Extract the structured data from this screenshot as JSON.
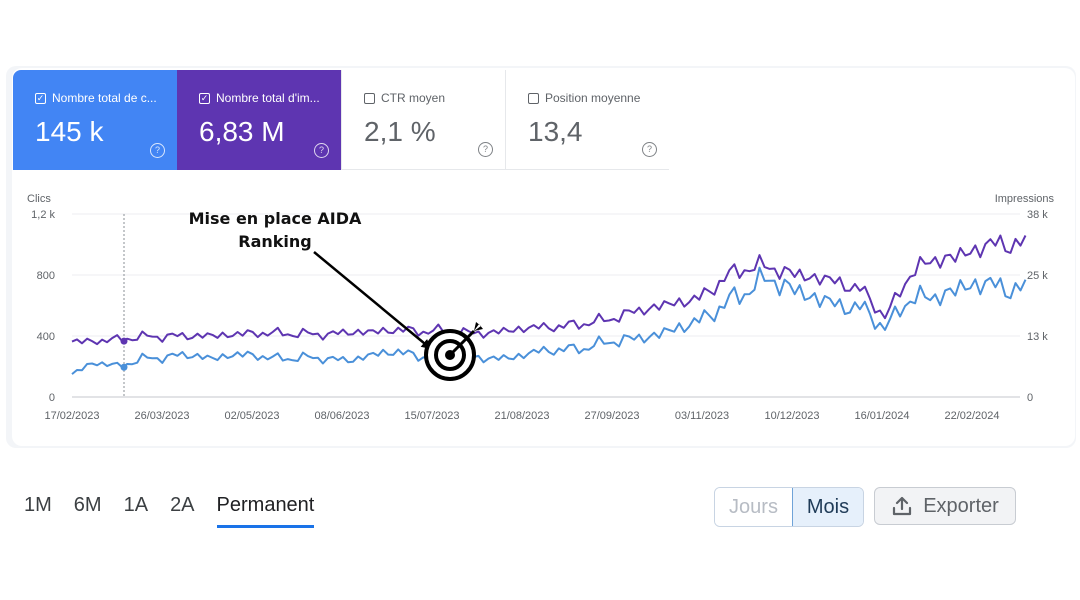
{
  "cards": [
    {
      "label": "Nombre total de c...",
      "value": "145 k",
      "checked": true
    },
    {
      "label": "Nombre total d'im...",
      "value": "6,83 M",
      "checked": true
    },
    {
      "label": "CTR moyen",
      "value": "2,1 %",
      "checked": false
    },
    {
      "label": "Position moyenne",
      "value": "13,4",
      "checked": false
    }
  ],
  "colors": {
    "clicks": "#4a90d9",
    "impressions": "#5e35b1",
    "accent": "#1a73e8"
  },
  "annotation": {
    "line1": "Mise en place AIDA",
    "line2": "Ranking",
    "icon": "target-icon"
  },
  "chart_data": {
    "type": "line",
    "ylabel_left": "Clics",
    "ylabel_right": "Impressions",
    "yticks_left": [
      "1,2 k",
      "800",
      "400",
      "0"
    ],
    "yticks_right": [
      "38 k",
      "25 k",
      "13 k",
      "0"
    ],
    "ylim_left": [
      0,
      1200
    ],
    "ylim_right": [
      0,
      38000
    ],
    "xticks": [
      "17/02/2023",
      "26/03/2023",
      "02/05/2023",
      "08/06/2023",
      "15/07/2023",
      "21/08/2023",
      "27/09/2023",
      "03/11/2023",
      "10/12/2023",
      "16/01/2024",
      "22/02/2024"
    ],
    "series": [
      {
        "name": "Clics",
        "axis": "left",
        "x_start": "2023-02-17",
        "x_end": "2024-03-15",
        "values": [
          150,
          230,
          200,
          250,
          260,
          280,
          250,
          280,
          270,
          250,
          260,
          250,
          240,
          280,
          300,
          260,
          280,
          270,
          250,
          260,
          300,
          310,
          320,
          360,
          380,
          400,
          450,
          500,
          600,
          700,
          780,
          700,
          650,
          600,
          580,
          450,
          650,
          650,
          700,
          750,
          720,
          700
        ]
      },
      {
        "name": "Impressions",
        "axis": "right",
        "x_start": "2023-02-17",
        "x_end": "2024-03-15",
        "values": [
          11500,
          11600,
          12000,
          12500,
          12600,
          12700,
          12700,
          13000,
          13300,
          13200,
          13100,
          13000,
          13500,
          13500,
          14000,
          13600,
          13800,
          13300,
          13300,
          14000,
          14500,
          14600,
          15300,
          16000,
          17500,
          18600,
          19600,
          20500,
          24500,
          27000,
          27000,
          25500,
          24800,
          23800,
          22000,
          16500,
          25500,
          28500,
          29000,
          31000,
          32000,
          31500
        ]
      }
    ]
  },
  "range_tabs": [
    "1M",
    "6M",
    "1A",
    "2A",
    "Permanent"
  ],
  "active_tab": "Permanent",
  "granularity": {
    "days": "Jours",
    "months": "Mois"
  },
  "export_label": "Exporter"
}
